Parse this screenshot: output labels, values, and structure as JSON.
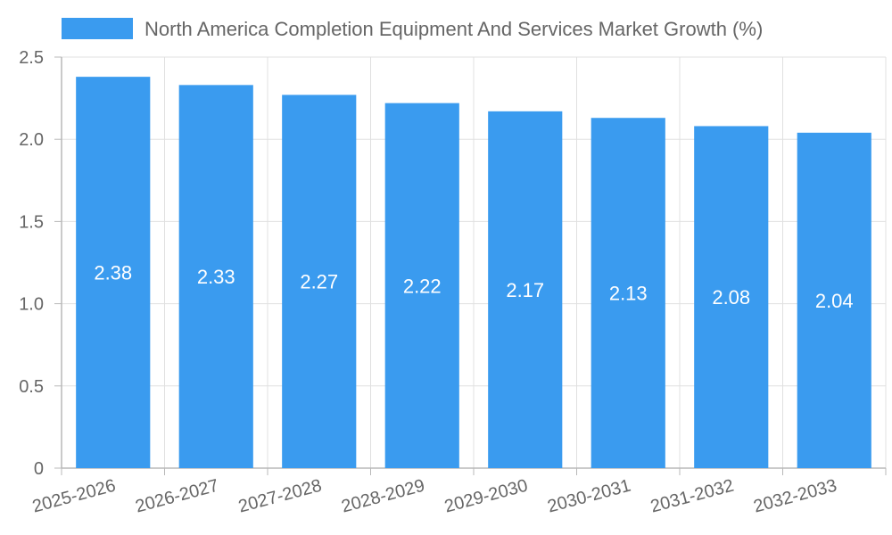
{
  "chart_data": {
    "type": "bar",
    "title": "",
    "xlabel": "",
    "ylabel": "",
    "legend": {
      "label": "North America Completion Equipment And Services Market Growth (%)",
      "position": "top"
    },
    "categories": [
      "2025-2026",
      "2026-2027",
      "2027-2028",
      "2028-2029",
      "2029-2030",
      "2030-2031",
      "2031-2032",
      "2032-2033"
    ],
    "values": [
      2.38,
      2.33,
      2.27,
      2.22,
      2.17,
      2.13,
      2.08,
      2.04
    ],
    "value_labels": [
      "2.38",
      "2.33",
      "2.27",
      "2.22",
      "2.17",
      "2.13",
      "2.08",
      "2.04"
    ],
    "ylim": [
      0,
      2.5
    ],
    "yticks": [
      0,
      0.5,
      1.0,
      1.5,
      2.0,
      2.5
    ],
    "ytick_labels": [
      "0",
      "0.5",
      "1.0",
      "1.5",
      "2.0",
      "2.5"
    ],
    "grid": true,
    "colors": {
      "bar": "#3a9bef",
      "grid": "#e0e0e0",
      "axis": "#b8b8b8",
      "text": "#666666",
      "bar_label": "#ffffff"
    }
  }
}
